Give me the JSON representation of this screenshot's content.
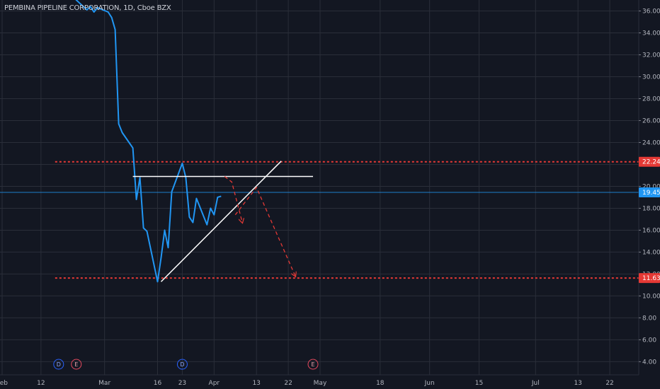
{
  "header": {
    "title": "PEMBINA PIPELINE CORPORATION, 1D, Cboe BZX"
  },
  "colors": {
    "background": "#131722",
    "grid": "#2a2e39",
    "price_line": "#2196f3",
    "level_line": "#e53935",
    "pattern_line": "#ffffff",
    "current_price_tag": "#2196f3",
    "level_tag": "#e53935",
    "dividend_badge": "#2962ff",
    "earnings_badge": "#e84a5f"
  },
  "chart_data": {
    "type": "line",
    "title": "PEMBINA PIPELINE CORPORATION, 1D, Cboe BZX",
    "y_axis": {
      "ylim": [
        2.8,
        37.0
      ],
      "ticks": [
        4.0,
        6.0,
        8.0,
        10.0,
        12.0,
        14.0,
        16.0,
        18.0,
        20.0,
        22.0,
        24.0,
        26.0,
        28.0,
        30.0,
        32.0,
        34.0,
        36.0
      ],
      "tick_labels": [
        "4.00",
        "6.00",
        "8.00",
        "10.00",
        "12.00",
        "14.00",
        "16.00",
        "18.00",
        "20.00",
        "22.00",
        "24.00",
        "26.00",
        "28.00",
        "30.00",
        "32.00",
        "34.00",
        "36.00"
      ],
      "position": "right"
    },
    "x_axis": {
      "range": [
        "2020-02-01",
        "2020-07-28"
      ],
      "ticks": [
        {
          "date": "2020-02-01",
          "label": "Feb"
        },
        {
          "date": "2020-02-12",
          "label": "12"
        },
        {
          "date": "2020-03-01",
          "label": "Mar"
        },
        {
          "date": "2020-03-16",
          "label": "16"
        },
        {
          "date": "2020-03-23",
          "label": "23"
        },
        {
          "date": "2020-04-01",
          "label": "Apr"
        },
        {
          "date": "2020-04-13",
          "label": "13"
        },
        {
          "date": "2020-04-22",
          "label": "22"
        },
        {
          "date": "2020-05-01",
          "label": "May"
        },
        {
          "date": "2020-05-18",
          "label": "18"
        },
        {
          "date": "2020-06-01",
          "label": "Jun"
        },
        {
          "date": "2020-06-15",
          "label": "15"
        },
        {
          "date": "2020-07-01",
          "label": "Jul"
        },
        {
          "date": "2020-07-13",
          "label": "13"
        },
        {
          "date": "2020-07-22",
          "label": "22"
        }
      ]
    },
    "grid": true,
    "series": [
      {
        "points": [
          [
            "2020-02-21",
            37.3
          ],
          [
            "2020-02-24",
            36.4
          ],
          [
            "2020-02-25",
            36.1
          ],
          [
            "2020-02-26",
            36.4
          ],
          [
            "2020-02-27",
            35.9
          ],
          [
            "2020-02-28",
            36.3
          ],
          [
            "2020-03-02",
            35.9
          ],
          [
            "2020-03-03",
            35.4
          ],
          [
            "2020-03-04",
            34.3
          ],
          [
            "2020-03-05",
            25.7
          ],
          [
            "2020-03-06",
            24.9
          ],
          [
            "2020-03-09",
            23.5
          ],
          [
            "2020-03-10",
            18.8
          ],
          [
            "2020-03-11",
            20.8
          ],
          [
            "2020-03-12",
            16.2
          ],
          [
            "2020-03-13",
            15.9
          ],
          [
            "2020-03-16",
            11.3
          ],
          [
            "2020-03-17",
            13.5
          ],
          [
            "2020-03-18",
            16.0
          ],
          [
            "2020-03-19",
            14.4
          ],
          [
            "2020-03-20",
            19.5
          ],
          [
            "2020-03-23",
            22.1
          ],
          [
            "2020-03-24",
            20.8
          ],
          [
            "2020-03-25",
            17.2
          ],
          [
            "2020-03-26",
            16.7
          ],
          [
            "2020-03-27",
            18.9
          ],
          [
            "2020-03-30",
            16.5
          ],
          [
            "2020-03-31",
            18.0
          ],
          [
            "2020-04-01",
            17.4
          ],
          [
            "2020-04-02",
            19.0
          ],
          [
            "2020-04-03",
            19.1
          ]
        ]
      }
    ],
    "current_price": 19.45,
    "horizontal_levels": [
      22.24,
      11.63
    ],
    "drawings": [
      {
        "kind": "segment",
        "from": [
          "2020-03-09",
          20.9
        ],
        "to": [
          "2020-04-29",
          20.9
        ]
      },
      {
        "kind": "segment",
        "from": [
          "2020-03-17",
          11.3
        ],
        "to": [
          "2020-04-20",
          22.3
        ]
      },
      {
        "kind": "dashed-arrow",
        "points": [
          [
            "2020-04-04",
            20.9
          ],
          [
            "2020-04-06",
            20.4
          ],
          [
            "2020-04-09",
            16.7
          ]
        ]
      },
      {
        "kind": "dashed-arrow",
        "points": [
          [
            "2020-04-07",
            17.4
          ],
          [
            "2020-04-13",
            19.9
          ],
          [
            "2020-04-24",
            11.8
          ]
        ]
      }
    ],
    "events": [
      {
        "date": "2020-02-17",
        "label": "D",
        "type": "dividend"
      },
      {
        "date": "2020-02-22",
        "label": "E",
        "type": "earnings"
      },
      {
        "date": "2020-03-23",
        "label": "D",
        "type": "dividend"
      },
      {
        "date": "2020-04-29",
        "label": "E",
        "type": "earnings"
      }
    ]
  },
  "price_tags": {
    "level_high": "22.24",
    "current": "19.45",
    "level_low": "11.63"
  }
}
